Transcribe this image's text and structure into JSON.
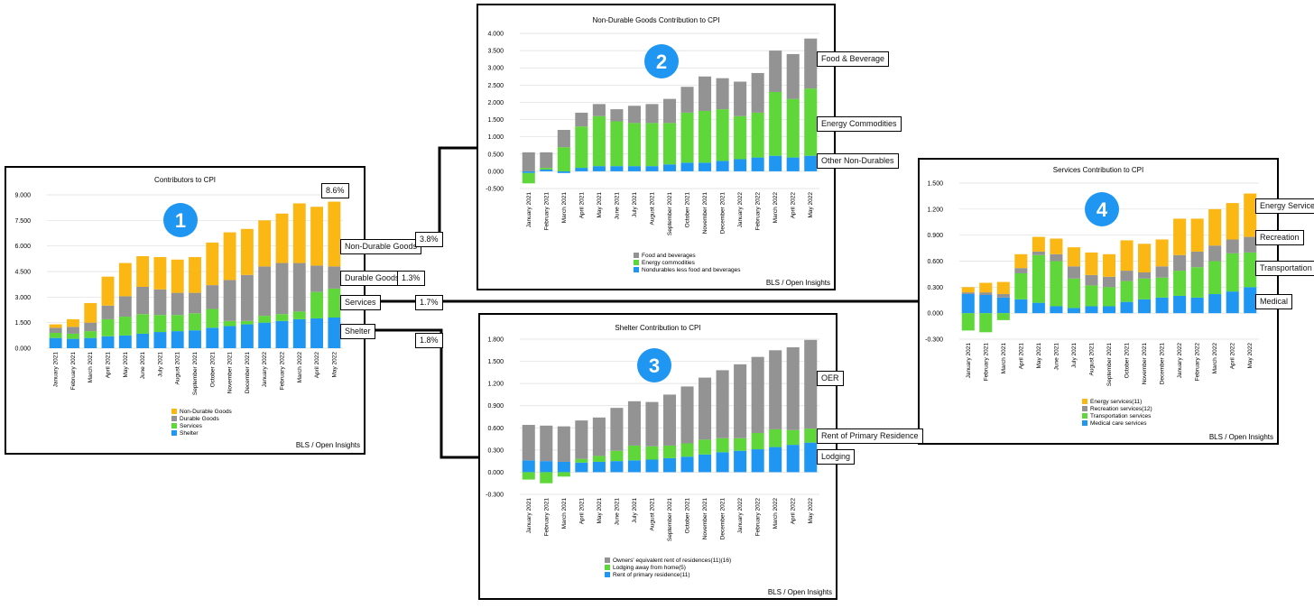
{
  "colors": {
    "non_durable": "#fbb714",
    "durable": "#939393",
    "services": "#5fd73a",
    "shelter": "#1e96f2",
    "badge": "#1e96f2"
  },
  "months": [
    "January 2021",
    "February 2021",
    "March 2021",
    "April 2021",
    "May 2021",
    "June 2021",
    "July 2021",
    "August 2021",
    "September 2021",
    "October 2021",
    "November 2021",
    "December 2021",
    "January 2022",
    "February 2022",
    "March 2022",
    "April 2022",
    "May 2022"
  ],
  "source_label": "BLS / Open Insights",
  "connector_labels": {
    "non_durable_goods": "Non-Durable Goods",
    "durable_goods": "Durable Goods",
    "services": "Services",
    "shelter": "Shelter",
    "nd_pct": "3.8%",
    "durable_pct": "1.3%",
    "services_pct": "1.7%",
    "shelter_pct": "1.8%",
    "total_pct": "8.6%"
  },
  "right_labels": {
    "chart2": [
      "Food & Beverage",
      "Energy Commodities",
      "Other Non-Durables"
    ],
    "chart3": [
      "OER",
      "Rent of Primary Residence",
      "Lodging"
    ],
    "chart4": [
      "Energy Services",
      "Recreation",
      "Transportation",
      "Medical"
    ]
  },
  "chart_data": [
    {
      "id": "1",
      "type": "bar",
      "stacked": true,
      "title": "Contributors to CPI",
      "categories": [
        "January 2021",
        "February 2021",
        "March 2021",
        "April 2021",
        "May 2021",
        "June 2021",
        "July 2021",
        "August 2021",
        "September 2021",
        "October 2021",
        "November 2021",
        "December 2021",
        "January 2022",
        "February 2022",
        "March 2022",
        "April 2022",
        "May 2022"
      ],
      "ylim": [
        0,
        9
      ],
      "yticks": [
        "0.000",
        "1.500",
        "3.000",
        "4.500",
        "6.000",
        "7.500",
        "9.000"
      ],
      "grid": true,
      "legend_position": "bottom",
      "series": [
        {
          "name": "Shelter",
          "color": "#1e96f2",
          "values": [
            0.6,
            0.55,
            0.6,
            0.7,
            0.75,
            0.85,
            0.95,
            1.0,
            1.05,
            1.2,
            1.3,
            1.4,
            1.5,
            1.6,
            1.7,
            1.75,
            1.8
          ]
        },
        {
          "name": "Services",
          "color": "#5fd73a",
          "values": [
            0.3,
            0.3,
            0.4,
            1.0,
            1.1,
            1.15,
            1.0,
            0.95,
            1.0,
            1.1,
            0.3,
            0.2,
            0.4,
            0.4,
            0.45,
            1.55,
            1.7
          ]
        },
        {
          "name": "Durable Goods",
          "color": "#939393",
          "values": [
            0.3,
            0.4,
            0.5,
            0.8,
            1.2,
            1.6,
            1.5,
            1.3,
            1.2,
            1.4,
            2.4,
            2.7,
            2.9,
            3.0,
            2.85,
            1.55,
            1.3
          ]
        },
        {
          "name": "Non-Durable Goods",
          "color": "#fbb714",
          "values": [
            0.2,
            0.45,
            1.15,
            1.7,
            1.95,
            1.8,
            1.9,
            1.95,
            2.1,
            2.5,
            2.8,
            2.7,
            2.7,
            2.9,
            3.5,
            3.45,
            3.8
          ]
        }
      ]
    },
    {
      "id": "2",
      "type": "bar",
      "stacked": true,
      "title": "Non-Durable Goods Contribution to CPI",
      "categories": [
        "January 2021",
        "February 2021",
        "March 2021",
        "April 2021",
        "May 2021",
        "June 2021",
        "July 2021",
        "August 2021",
        "September 2021",
        "October 2021",
        "November 2021",
        "December 2021",
        "January 2022",
        "February 2022",
        "March 2022",
        "April 2022",
        "May 2022"
      ],
      "ylim": [
        -0.5,
        4
      ],
      "yticks": [
        "-0.500",
        "0.000",
        "0.500",
        "1.000",
        "1.500",
        "2.000",
        "2.500",
        "3.000",
        "3.500",
        "4.000"
      ],
      "grid": true,
      "legend_position": "bottom",
      "series": [
        {
          "name": "Nondurables less food and beverages",
          "color": "#1e96f2",
          "values": [
            -0.05,
            0.05,
            -0.05,
            0.1,
            0.15,
            0.15,
            0.15,
            0.15,
            0.2,
            0.25,
            0.25,
            0.3,
            0.35,
            0.4,
            0.45,
            0.4,
            0.45
          ]
        },
        {
          "name": "Energy commodities",
          "color": "#5fd73a",
          "values": [
            -0.3,
            0.05,
            0.7,
            1.2,
            1.45,
            1.3,
            1.25,
            1.25,
            1.2,
            1.45,
            1.5,
            1.5,
            1.25,
            1.3,
            1.85,
            1.7,
            1.95
          ]
        },
        {
          "name": "Food and beverages",
          "color": "#939393",
          "values": [
            0.55,
            0.45,
            0.5,
            0.4,
            0.35,
            0.35,
            0.5,
            0.55,
            0.7,
            0.75,
            1.0,
            0.9,
            1.0,
            1.15,
            1.2,
            1.3,
            1.45
          ]
        }
      ]
    },
    {
      "id": "3",
      "type": "bar",
      "stacked": true,
      "title": "Shelter Contribution to CPI",
      "categories": [
        "January 2021",
        "February 2021",
        "March 2021",
        "April 2021",
        "May 2021",
        "June 2021",
        "July 2021",
        "August 2021",
        "September 2021",
        "October 2021",
        "November 2021",
        "December 2021",
        "January 2022",
        "February 2022",
        "March 2022",
        "April 2022",
        "May 2022"
      ],
      "ylim": [
        -0.3,
        1.8
      ],
      "yticks": [
        "-0.300",
        "0.000",
        "0.300",
        "0.600",
        "0.900",
        "1.200",
        "1.500",
        "1.800"
      ],
      "grid": true,
      "legend_position": "bottom",
      "series": [
        {
          "name": "Rent of primary residence(11)",
          "color": "#1e96f2",
          "values": [
            0.16,
            0.15,
            0.14,
            0.13,
            0.14,
            0.15,
            0.16,
            0.17,
            0.19,
            0.21,
            0.24,
            0.27,
            0.29,
            0.31,
            0.34,
            0.37,
            0.4
          ]
        },
        {
          "name": "Lodging away from home(5)",
          "color": "#5fd73a",
          "values": [
            -0.1,
            -0.15,
            -0.06,
            0.05,
            0.08,
            0.14,
            0.2,
            0.18,
            0.17,
            0.18,
            0.2,
            0.19,
            0.17,
            0.22,
            0.24,
            0.2,
            0.19
          ]
        },
        {
          "name": "Owners' equivalent rent of residences(11)(16)",
          "color": "#939393",
          "values": [
            0.48,
            0.48,
            0.48,
            0.52,
            0.52,
            0.58,
            0.6,
            0.6,
            0.69,
            0.77,
            0.84,
            0.92,
            1.0,
            1.03,
            1.07,
            1.12,
            1.2
          ]
        }
      ]
    },
    {
      "id": "4",
      "type": "bar",
      "stacked": true,
      "title": "Services Contribution to CPI",
      "categories": [
        "January 2021",
        "February 2021",
        "March 2021",
        "April 2021",
        "May 2021",
        "June 2021",
        "July 2021",
        "August 2021",
        "September 2021",
        "October 2021",
        "November 2021",
        "December 2021",
        "January 2022",
        "February 2022",
        "March 2022",
        "April 2022",
        "May 2022"
      ],
      "ylim": [
        -0.3,
        1.5
      ],
      "yticks": [
        "-0.300",
        "0.000",
        "0.300",
        "0.600",
        "0.900",
        "1.200",
        "1.500"
      ],
      "grid": true,
      "legend_position": "bottom",
      "series": [
        {
          "name": "Medical care services",
          "color": "#1e96f2",
          "values": [
            0.22,
            0.21,
            0.18,
            0.16,
            0.12,
            0.08,
            0.06,
            0.08,
            0.08,
            0.13,
            0.16,
            0.18,
            0.2,
            0.18,
            0.22,
            0.25,
            0.3
          ]
        },
        {
          "name": "Transportation services",
          "color": "#5fd73a",
          "values": [
            -0.2,
            -0.22,
            -0.08,
            0.3,
            0.55,
            0.52,
            0.34,
            0.24,
            0.22,
            0.24,
            0.24,
            0.23,
            0.29,
            0.35,
            0.38,
            0.44,
            0.4
          ]
        },
        {
          "name": "Recreation services(12)",
          "color": "#939393",
          "values": [
            0.02,
            0.03,
            0.04,
            0.06,
            0.04,
            0.08,
            0.14,
            0.12,
            0.12,
            0.12,
            0.07,
            0.13,
            0.18,
            0.18,
            0.18,
            0.16,
            0.18
          ]
        },
        {
          "name": "Energy services(11)",
          "color": "#fbb714",
          "values": [
            0.06,
            0.11,
            0.14,
            0.16,
            0.17,
            0.18,
            0.22,
            0.26,
            0.26,
            0.35,
            0.33,
            0.31,
            0.42,
            0.38,
            0.42,
            0.42,
            0.5
          ]
        }
      ]
    }
  ]
}
